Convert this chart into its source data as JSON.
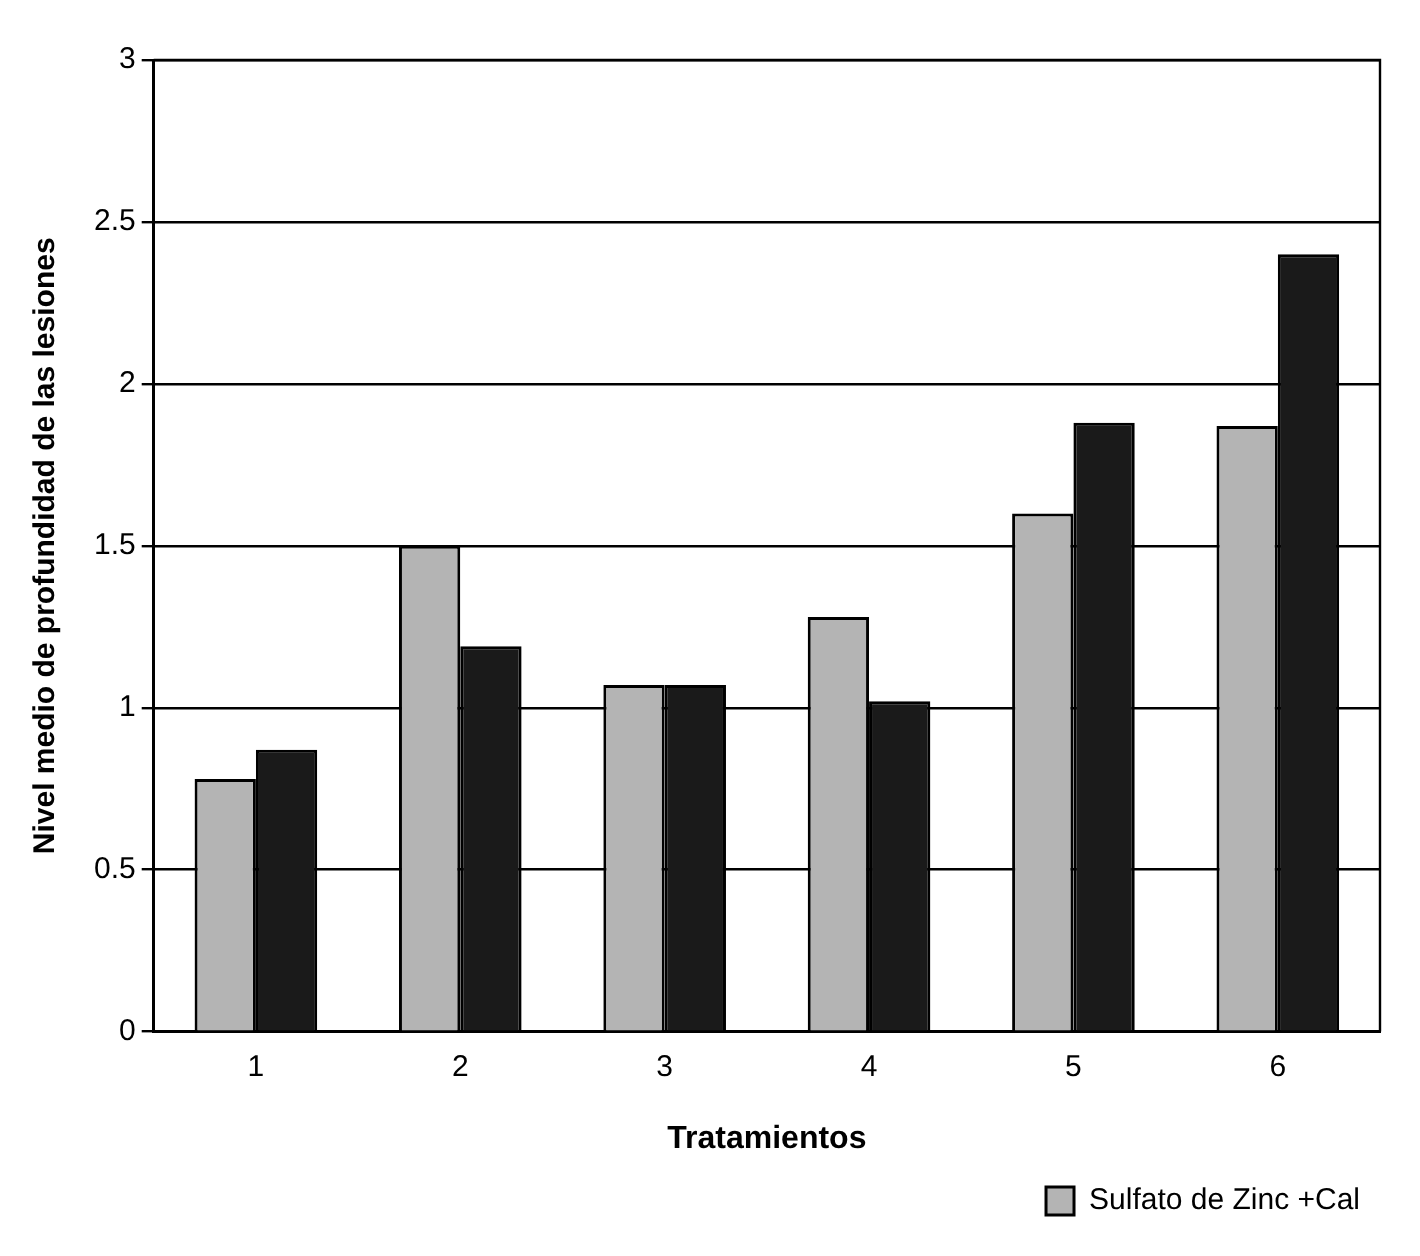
{
  "chart_data": {
    "type": "bar",
    "xlabel": "Tratamientos",
    "ylabel": "Nivel medio de profundidad de las lesiones",
    "categories": [
      "1",
      "2",
      "3",
      "4",
      "5",
      "6"
    ],
    "series": [
      {
        "name": "Sulfato de Zinc +Cal",
        "color": "#b4b4b4",
        "values": [
          0.78,
          1.5,
          1.07,
          1.28,
          1.6,
          1.87
        ]
      },
      {
        "color": "#1a1a1a",
        "values": [
          0.87,
          1.19,
          1.07,
          1.02,
          1.88,
          2.4
        ]
      }
    ],
    "ylim": [
      0,
      3
    ],
    "yticks": [
      0,
      0.5,
      1,
      1.5,
      2,
      2.5,
      3
    ],
    "grid": "y",
    "legend": "bottom right"
  }
}
